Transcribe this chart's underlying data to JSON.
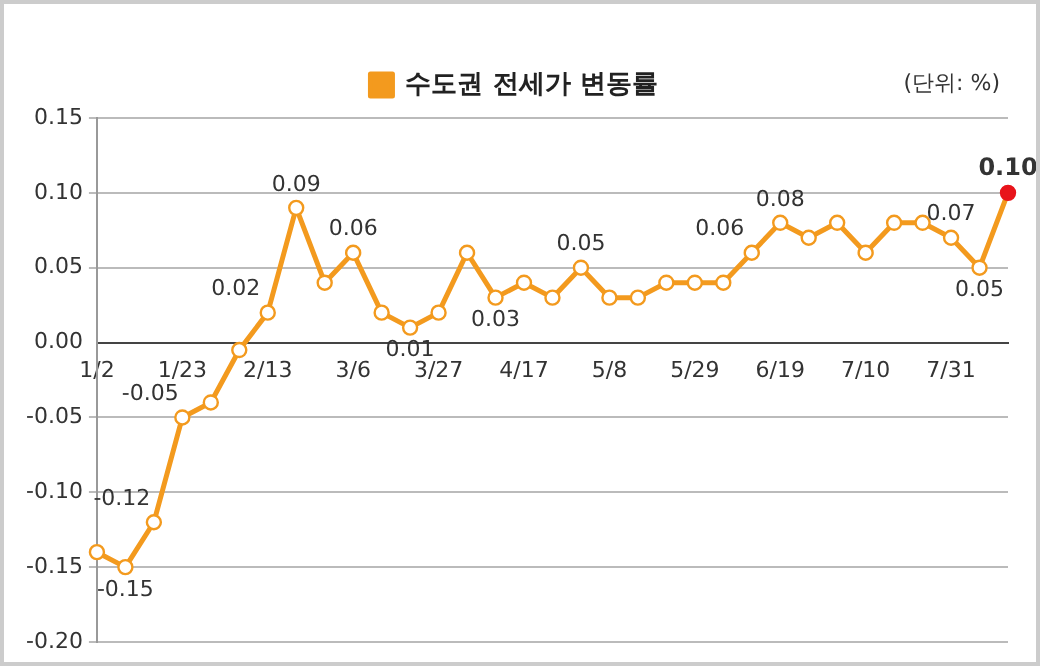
{
  "chart_data": {
    "type": "line",
    "legend": "top",
    "annotations": [
      "(단위: %)"
    ],
    "categories": [
      "1/2",
      null,
      null,
      "1/23",
      null,
      null,
      "2/13",
      null,
      null,
      "3/6",
      null,
      null,
      "3/27",
      null,
      null,
      "4/17",
      null,
      null,
      "5/8",
      null,
      null,
      "5/29",
      null,
      null,
      "6/19",
      null,
      null,
      "7/10",
      null,
      null,
      "7/31",
      null,
      null
    ],
    "series": [
      {
        "name": "수도권 전세가 변동률",
        "color": "#f39a1e",
        "values": [
          -0.14,
          -0.15,
          -0.12,
          -0.05,
          -0.04,
          -0.005,
          0.02,
          0.09,
          0.04,
          0.06,
          0.02,
          0.01,
          0.02,
          0.06,
          0.03,
          0.04,
          0.03,
          0.05,
          0.03,
          0.03,
          0.04,
          0.04,
          0.04,
          0.06,
          0.08,
          0.07,
          0.08,
          0.06,
          0.08,
          0.08,
          0.07,
          0.05,
          0.1
        ],
        "value_labels": [
          null,
          "-0.15",
          "-0.12",
          "-0.05",
          null,
          null,
          "0.02",
          "0.09",
          null,
          "0.06",
          null,
          "0.01",
          null,
          null,
          "0.03",
          null,
          null,
          "0.05",
          null,
          null,
          null,
          null,
          null,
          "0.06",
          "0.08",
          null,
          null,
          null,
          null,
          null,
          "0.07",
          "0.05",
          "0.10"
        ],
        "colors": [
          "#f39a1e",
          "#f39a1e",
          "#f39a1e",
          "#f39a1e",
          "#f39a1e",
          "#f39a1e",
          "#f39a1e",
          "#f39a1e",
          "#f39a1e",
          "#f39a1e",
          "#f39a1e",
          "#f39a1e",
          "#f39a1e",
          "#f39a1e",
          "#f39a1e",
          "#f39a1e",
          "#f39a1e",
          "#f39a1e",
          "#f39a1e",
          "#f39a1e",
          "#f39a1e",
          "#f39a1e",
          "#f39a1e",
          "#f39a1e",
          "#f39a1e",
          "#f39a1e",
          "#f39a1e",
          "#f39a1e",
          "#f39a1e",
          "#f39a1e",
          "#f39a1e",
          "#f39a1e",
          "#e8141b"
        ]
      }
    ],
    "ylim": [
      -0.2,
      0.15
    ],
    "yticks": [
      {
        "value": -0.2,
        "label": "-0.20"
      },
      {
        "value": -0.15,
        "label": "-0.15"
      },
      {
        "value": -0.1,
        "label": "-0.10"
      },
      {
        "value": -0.05,
        "label": "-0.05"
      },
      {
        "value": 0,
        "label": "0.00"
      },
      {
        "value": 0.05,
        "label": "0.05"
      },
      {
        "value": 0.1,
        "label": "0.10"
      },
      {
        "value": 0.15,
        "label": "0.15"
      }
    ],
    "grid": "y",
    "marker": "circle",
    "line_style": "solid"
  }
}
